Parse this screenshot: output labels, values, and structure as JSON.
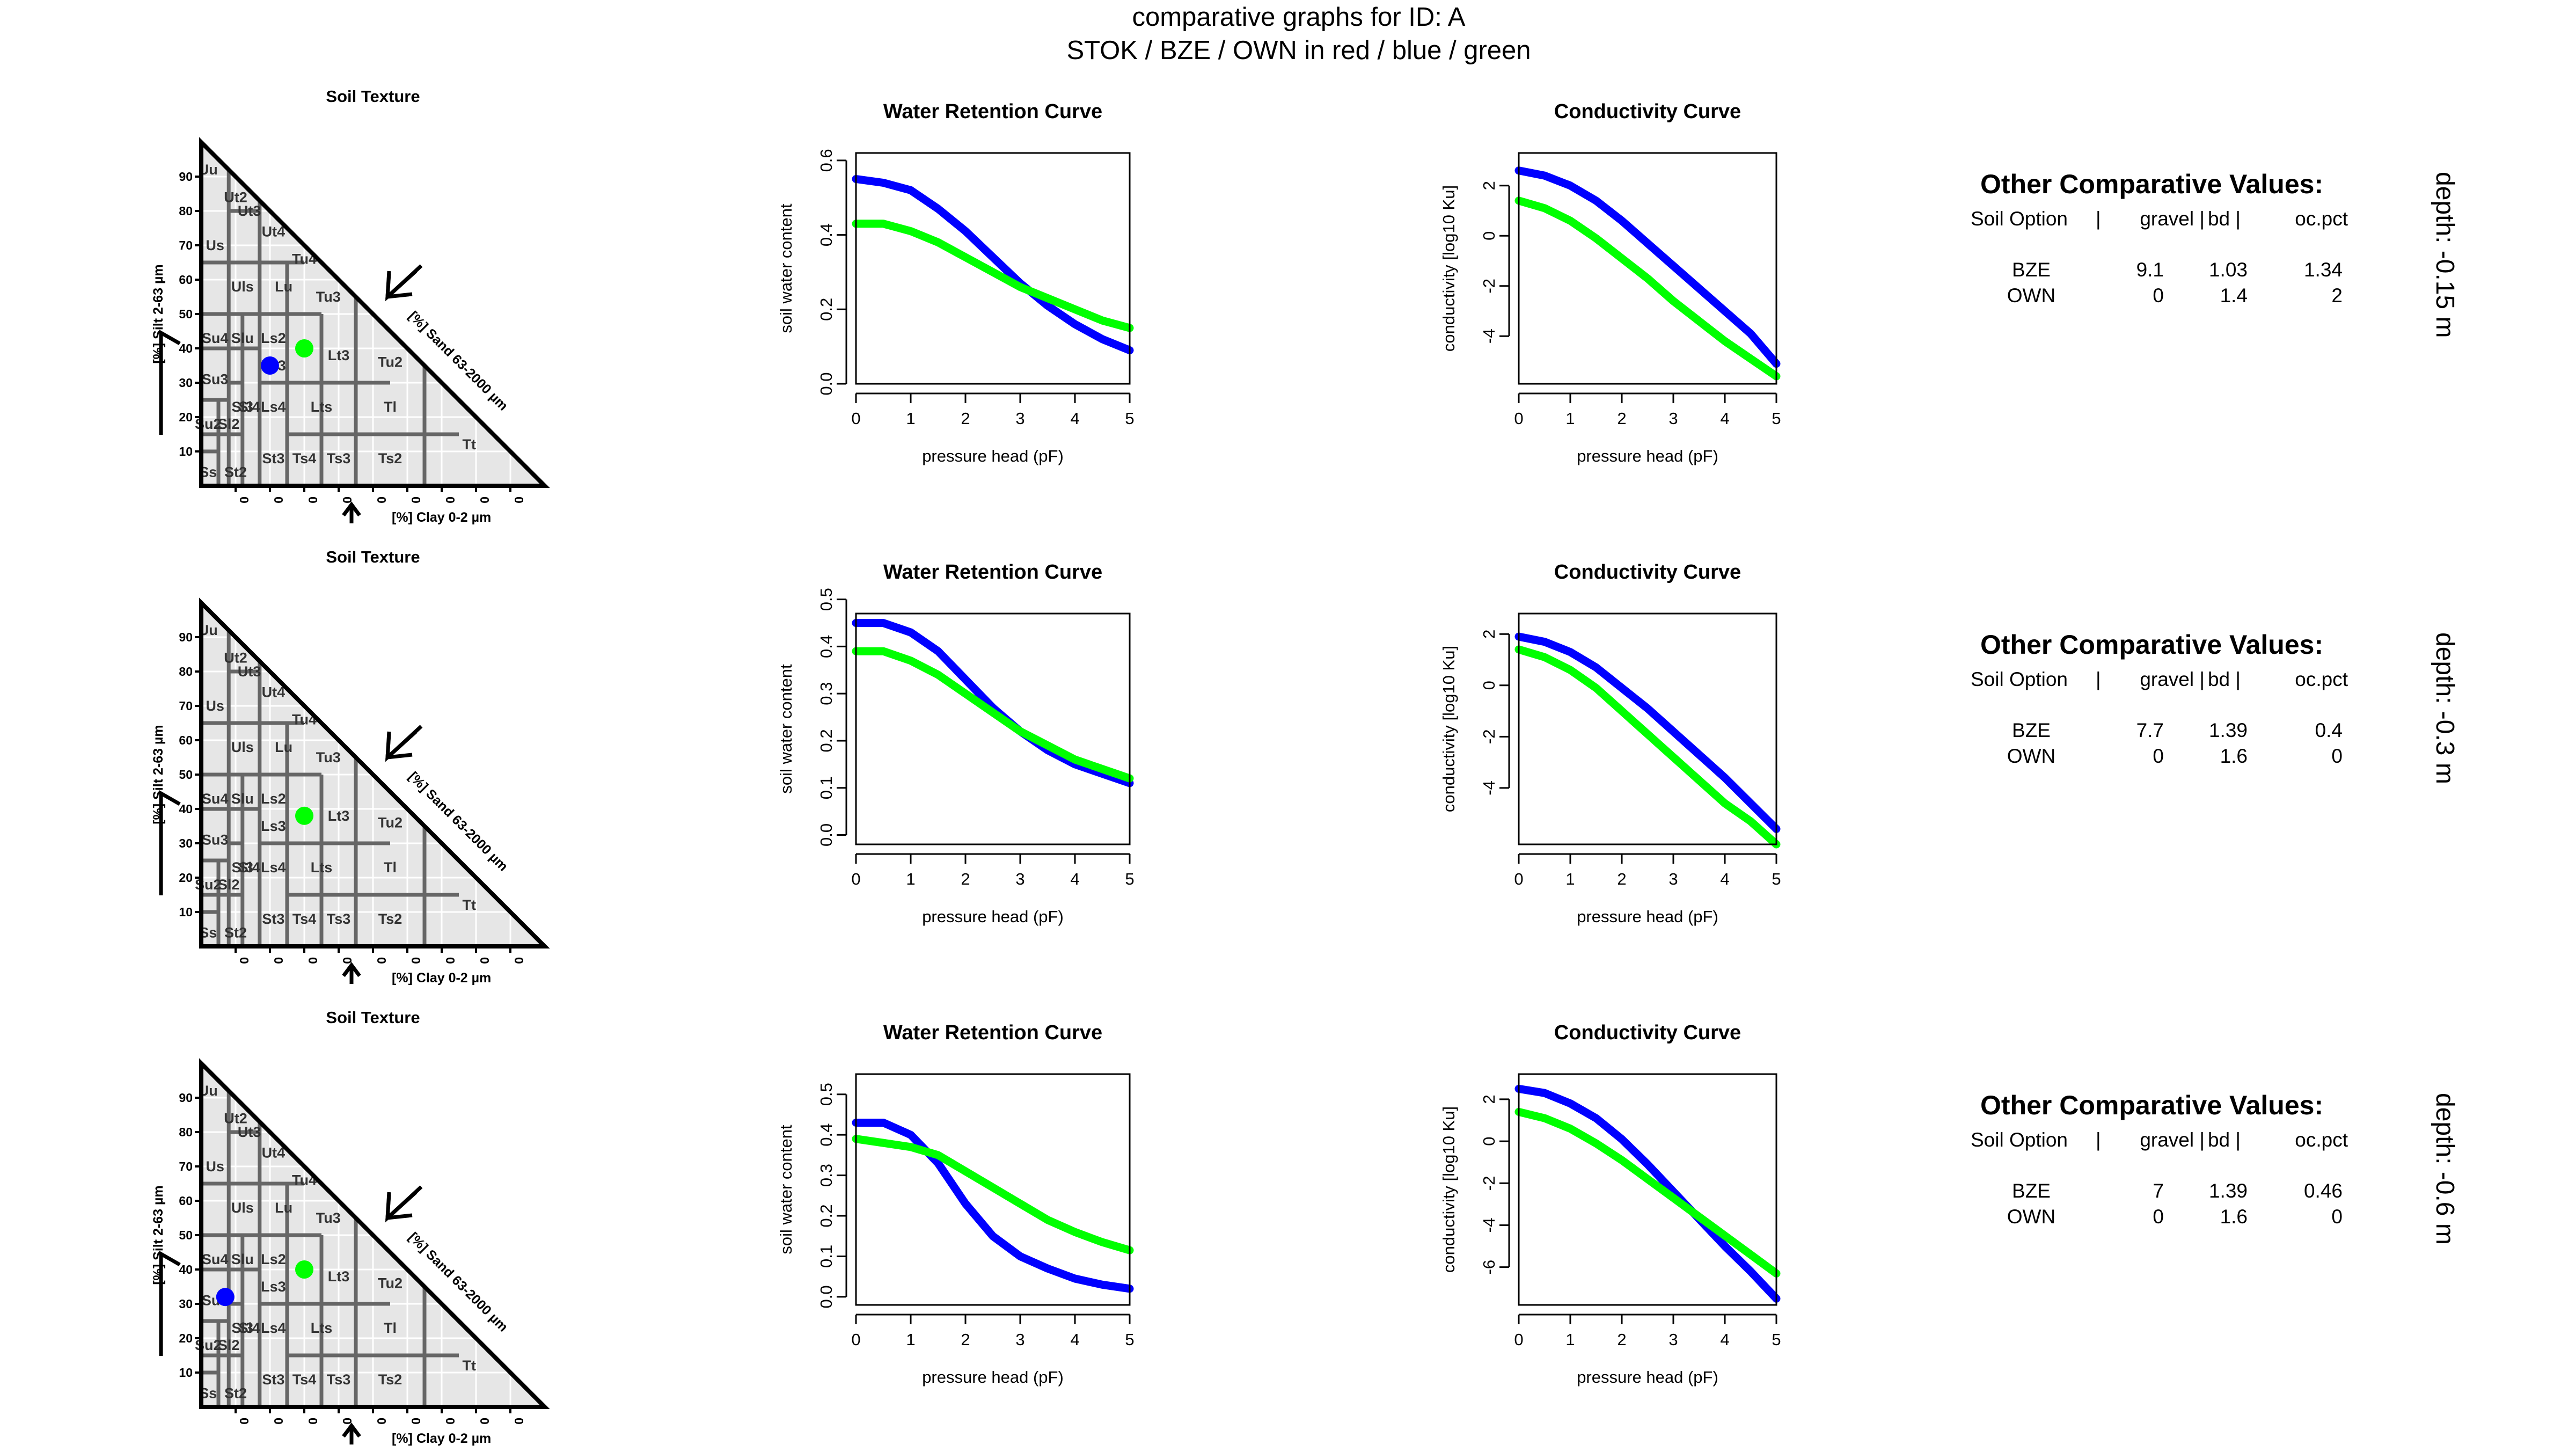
{
  "title": {
    "line1": "comparative graphs for ID: A",
    "line2": "STOK / BZE / OWN  in  red / blue / green"
  },
  "colors": {
    "STOK": "#ff0000",
    "BZE": "#0000ff",
    "OWN": "#00ff00",
    "triangle_fill": "#e6e6e6",
    "class_border": "#666666"
  },
  "triangle": {
    "title": "Soil Texture",
    "silt_axis_label": "[%] Silt 2-63 µm",
    "sand_axis_label": "[%] Sand 63-2000 µm",
    "clay_axis_label": "[%] Clay 0-2 µm",
    "silt_ticks": [
      "10",
      "20",
      "30",
      "40",
      "50",
      "60",
      "70",
      "80",
      "90"
    ],
    "clay_ticks": [
      "0",
      "0",
      "0",
      "0",
      "0",
      "0",
      "0",
      "0",
      "0"
    ],
    "class_labels": [
      {
        "name": "Uu",
        "clay": 2,
        "silt": 92
      },
      {
        "name": "Ut2",
        "clay": 10,
        "silt": 84
      },
      {
        "name": "Ut3",
        "clay": 14,
        "silt": 80
      },
      {
        "name": "Ut4",
        "clay": 21,
        "silt": 74
      },
      {
        "name": "Tu4",
        "clay": 30,
        "silt": 66
      },
      {
        "name": "Us",
        "clay": 4,
        "silt": 70
      },
      {
        "name": "Uls",
        "clay": 12,
        "silt": 58
      },
      {
        "name": "Lu",
        "clay": 24,
        "silt": 58
      },
      {
        "name": "Tu3",
        "clay": 37,
        "silt": 55
      },
      {
        "name": "Su4",
        "clay": 4,
        "silt": 43
      },
      {
        "name": "Slu",
        "clay": 12,
        "silt": 43
      },
      {
        "name": "Ls2",
        "clay": 21,
        "silt": 43
      },
      {
        "name": "Ls3",
        "clay": 21,
        "silt": 35
      },
      {
        "name": "Lt3",
        "clay": 40,
        "silt": 38
      },
      {
        "name": "Tu2",
        "clay": 55,
        "silt": 36
      },
      {
        "name": "Su3",
        "clay": 4,
        "silt": 31
      },
      {
        "name": "Sl3",
        "clay": 12,
        "silt": 23
      },
      {
        "name": "Sl4",
        "clay": 14,
        "silt": 23
      },
      {
        "name": "Su2",
        "clay": 2,
        "silt": 18
      },
      {
        "name": "Sl2",
        "clay": 8,
        "silt": 18
      },
      {
        "name": "Ls4",
        "clay": 21,
        "silt": 23
      },
      {
        "name": "Lts",
        "clay": 35,
        "silt": 23
      },
      {
        "name": "Tl",
        "clay": 55,
        "silt": 23
      },
      {
        "name": "Tt",
        "clay": 78,
        "silt": 12
      },
      {
        "name": "Ss",
        "clay": 2,
        "silt": 4
      },
      {
        "name": "St2",
        "clay": 10,
        "silt": 4
      },
      {
        "name": "St3",
        "clay": 21,
        "silt": 8
      },
      {
        "name": "Ts4",
        "clay": 30,
        "silt": 8
      },
      {
        "name": "Ts3",
        "clay": 40,
        "silt": 8
      },
      {
        "name": "Ts2",
        "clay": 55,
        "silt": 8
      }
    ]
  },
  "info": {
    "title": "Other Comparative Values:",
    "headers": [
      "Soil Option",
      "|",
      "gravel |",
      "bd |",
      "oc.pct"
    ]
  },
  "chart_data": [
    {
      "type": "line",
      "row": 0,
      "panel": "water_retention",
      "title": "Water Retention Curve",
      "xlabel": "pressure head (pF)",
      "ylabel": "soil water content",
      "xlim": [
        0,
        5
      ],
      "ylim": [
        0,
        0.62
      ],
      "x_ticks": [
        "0",
        "1",
        "2",
        "3",
        "4",
        "5"
      ],
      "y_ticks": [
        "0.0",
        "0.2",
        "0.4",
        "0.6"
      ],
      "series": [
        {
          "name": "BZE",
          "x": [
            0,
            0.5,
            1,
            1.5,
            2,
            2.5,
            3,
            3.5,
            4,
            4.5,
            5
          ],
          "values": [
            0.55,
            0.54,
            0.52,
            0.47,
            0.41,
            0.34,
            0.27,
            0.21,
            0.16,
            0.12,
            0.09
          ]
        },
        {
          "name": "OWN",
          "x": [
            0,
            0.5,
            1,
            1.5,
            2,
            2.5,
            3,
            3.5,
            4,
            4.5,
            5
          ],
          "values": [
            0.43,
            0.43,
            0.41,
            0.38,
            0.34,
            0.3,
            0.26,
            0.23,
            0.2,
            0.17,
            0.15
          ]
        }
      ]
    },
    {
      "type": "line",
      "row": 0,
      "panel": "conductivity",
      "title": "Conductivity Curve",
      "xlabel": "pressure head (pF)",
      "ylabel": "conductivity [log10 Ku]",
      "xlim": [
        0,
        5
      ],
      "ylim": [
        -5.9,
        3.3
      ],
      "x_ticks": [
        "0",
        "1",
        "2",
        "3",
        "4",
        "5"
      ],
      "y_ticks": [
        "-4",
        "-2",
        "0",
        "2"
      ],
      "series": [
        {
          "name": "BZE",
          "x": [
            0,
            0.5,
            1,
            1.5,
            2,
            2.5,
            3,
            3.5,
            4,
            4.5,
            5
          ],
          "values": [
            2.6,
            2.4,
            2.0,
            1.4,
            0.6,
            -0.3,
            -1.2,
            -2.1,
            -3.0,
            -3.9,
            -5.1
          ]
        },
        {
          "name": "OWN",
          "x": [
            0,
            0.5,
            1,
            1.5,
            2,
            2.5,
            3,
            3.5,
            4,
            4.5,
            5
          ],
          "values": [
            1.4,
            1.1,
            0.6,
            -0.1,
            -0.9,
            -1.7,
            -2.6,
            -3.4,
            -4.2,
            -4.9,
            -5.6
          ]
        }
      ]
    },
    {
      "type": "scatter",
      "row": 0,
      "panel": "soil_texture",
      "title": "Soil Texture",
      "series": [
        {
          "name": "BZE",
          "clay": [
            20
          ],
          "silt": [
            35
          ]
        },
        {
          "name": "OWN",
          "clay": [
            30
          ],
          "silt": [
            40
          ]
        }
      ]
    },
    {
      "type": "table",
      "row": 0,
      "panel": "other_values",
      "depth": "depth: -0.15 m",
      "rows": [
        {
          "option": "BZE",
          "gravel": "9.1",
          "bd": "1.03",
          "oc_pct": "1.34"
        },
        {
          "option": "OWN",
          "gravel": "0",
          "bd": "1.4",
          "oc_pct": "2"
        }
      ]
    },
    {
      "type": "line",
      "row": 1,
      "panel": "water_retention",
      "title": "Water Retention Curve",
      "xlabel": "pressure head (pF)",
      "ylabel": "soil water content",
      "xlim": [
        0,
        5
      ],
      "ylim": [
        -0.02,
        0.47
      ],
      "x_ticks": [
        "0",
        "1",
        "2",
        "3",
        "4",
        "5"
      ],
      "y_ticks": [
        "0.0",
        "0.1",
        "0.2",
        "0.3",
        "0.4",
        "0.5"
      ],
      "series": [
        {
          "name": "BZE",
          "x": [
            0,
            0.5,
            1,
            1.5,
            2,
            2.5,
            3,
            3.5,
            4,
            4.5,
            5
          ],
          "values": [
            0.45,
            0.45,
            0.43,
            0.39,
            0.33,
            0.27,
            0.22,
            0.18,
            0.15,
            0.13,
            0.11
          ]
        },
        {
          "name": "OWN",
          "x": [
            0,
            0.5,
            1,
            1.5,
            2,
            2.5,
            3,
            3.5,
            4,
            4.5,
            5
          ],
          "values": [
            0.39,
            0.39,
            0.37,
            0.34,
            0.3,
            0.26,
            0.22,
            0.19,
            0.16,
            0.14,
            0.12
          ]
        }
      ]
    },
    {
      "type": "line",
      "row": 1,
      "panel": "conductivity",
      "title": "Conductivity Curve",
      "xlabel": "pressure head (pF)",
      "ylabel": "conductivity [log10 Ku]",
      "xlim": [
        0,
        5
      ],
      "ylim": [
        -6.2,
        2.8
      ],
      "x_ticks": [
        "0",
        "1",
        "2",
        "3",
        "4",
        "5"
      ],
      "y_ticks": [
        "-4",
        "-2",
        "0",
        "2"
      ],
      "series": [
        {
          "name": "BZE",
          "x": [
            0,
            0.5,
            1,
            1.5,
            2,
            2.5,
            3,
            3.5,
            4,
            4.5,
            5
          ],
          "values": [
            1.9,
            1.7,
            1.3,
            0.7,
            -0.1,
            -0.9,
            -1.8,
            -2.7,
            -3.6,
            -4.6,
            -5.6
          ]
        },
        {
          "name": "OWN",
          "x": [
            0,
            0.5,
            1,
            1.5,
            2,
            2.5,
            3,
            3.5,
            4,
            4.5,
            5
          ],
          "values": [
            1.4,
            1.1,
            0.6,
            -0.1,
            -1.0,
            -1.9,
            -2.8,
            -3.7,
            -4.6,
            -5.3,
            -6.2
          ]
        }
      ]
    },
    {
      "type": "scatter",
      "row": 1,
      "panel": "soil_texture",
      "title": "Soil Texture",
      "series": [
        {
          "name": "OWN",
          "clay": [
            30
          ],
          "silt": [
            38
          ]
        }
      ]
    },
    {
      "type": "table",
      "row": 1,
      "panel": "other_values",
      "depth": "depth: -0.3 m",
      "rows": [
        {
          "option": "BZE",
          "gravel": "7.7",
          "bd": "1.39",
          "oc_pct": "0.4"
        },
        {
          "option": "OWN",
          "gravel": "0",
          "bd": "1.6",
          "oc_pct": "0"
        }
      ]
    },
    {
      "type": "line",
      "row": 2,
      "panel": "water_retention",
      "title": "Water Retention Curve",
      "xlabel": "pressure head (pF)",
      "ylabel": "soil water content",
      "xlim": [
        0,
        5
      ],
      "ylim": [
        -0.02,
        0.55
      ],
      "x_ticks": [
        "0",
        "1",
        "2",
        "3",
        "4",
        "5"
      ],
      "y_ticks": [
        "0.0",
        "0.1",
        "0.2",
        "0.3",
        "0.4",
        "0.5"
      ],
      "series": [
        {
          "name": "BZE",
          "x": [
            0,
            0.5,
            1,
            1.5,
            2,
            2.5,
            3,
            3.5,
            4,
            4.5,
            5
          ],
          "values": [
            0.43,
            0.43,
            0.4,
            0.33,
            0.23,
            0.15,
            0.1,
            0.07,
            0.045,
            0.03,
            0.02
          ]
        },
        {
          "name": "OWN",
          "x": [
            0,
            0.5,
            1,
            1.5,
            2,
            2.5,
            3,
            3.5,
            4,
            4.5,
            5
          ],
          "values": [
            0.39,
            0.38,
            0.37,
            0.35,
            0.31,
            0.27,
            0.23,
            0.19,
            0.16,
            0.135,
            0.115
          ]
        }
      ]
    },
    {
      "type": "line",
      "row": 2,
      "panel": "conductivity",
      "title": "Conductivity Curve",
      "xlabel": "pressure head (pF)",
      "ylabel": "conductivity [log10 Ku]",
      "xlim": [
        0,
        5
      ],
      "ylim": [
        -7.8,
        3.2
      ],
      "x_ticks": [
        "0",
        "1",
        "2",
        "3",
        "4",
        "5"
      ],
      "y_ticks": [
        "-6",
        "-4",
        "-2",
        "0",
        "2"
      ],
      "series": [
        {
          "name": "BZE",
          "x": [
            0,
            0.5,
            1,
            1.5,
            2,
            2.5,
            3,
            3.5,
            4,
            4.5,
            5
          ],
          "values": [
            2.5,
            2.3,
            1.8,
            1.1,
            0.1,
            -1.1,
            -2.4,
            -3.7,
            -5.0,
            -6.2,
            -7.5
          ]
        },
        {
          "name": "OWN",
          "x": [
            0,
            0.5,
            1,
            1.5,
            2,
            2.5,
            3,
            3.5,
            4,
            4.5,
            5
          ],
          "values": [
            1.4,
            1.1,
            0.6,
            -0.1,
            -0.9,
            -1.8,
            -2.7,
            -3.6,
            -4.5,
            -5.4,
            -6.3
          ]
        }
      ]
    },
    {
      "type": "scatter",
      "row": 2,
      "panel": "soil_texture",
      "title": "Soil Texture",
      "series": [
        {
          "name": "BZE",
          "clay": [
            7
          ],
          "silt": [
            32
          ]
        },
        {
          "name": "OWN",
          "clay": [
            30
          ],
          "silt": [
            40
          ]
        }
      ]
    },
    {
      "type": "table",
      "row": 2,
      "panel": "other_values",
      "depth": "depth: -0.6 m",
      "rows": [
        {
          "option": "BZE",
          "gravel": "7",
          "bd": "1.39",
          "oc_pct": "0.46"
        },
        {
          "option": "OWN",
          "gravel": "0",
          "bd": "1.6",
          "oc_pct": "0"
        }
      ]
    }
  ]
}
